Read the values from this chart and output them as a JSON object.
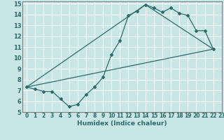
{
  "xlabel": "Humidex (Indice chaleur)",
  "xlim": [
    -0.5,
    23
  ],
  "ylim": [
    5,
    15.2
  ],
  "xticks": [
    0,
    1,
    2,
    3,
    4,
    5,
    6,
    7,
    8,
    9,
    10,
    11,
    12,
    13,
    14,
    15,
    16,
    17,
    18,
    19,
    20,
    21,
    22,
    23
  ],
  "yticks": [
    5,
    6,
    7,
    8,
    9,
    10,
    11,
    12,
    13,
    14,
    15
  ],
  "bg_color": "#c8e6e6",
  "grid_color": "#ffffff",
  "line_color": "#2d6b6b",
  "line1_x": [
    0,
    1,
    2,
    3,
    4,
    5,
    6,
    7,
    8,
    9,
    10,
    11,
    12,
    13,
    14,
    15,
    16,
    17,
    18,
    19,
    20,
    21,
    22
  ],
  "line1_y": [
    7.3,
    7.1,
    6.9,
    6.9,
    6.2,
    5.5,
    5.7,
    6.6,
    7.3,
    8.2,
    10.3,
    11.6,
    13.9,
    14.3,
    14.9,
    14.6,
    14.2,
    14.6,
    14.1,
    13.9,
    12.5,
    12.5,
    10.8
  ],
  "line2_x": [
    0,
    22
  ],
  "line2_y": [
    7.3,
    10.8
  ],
  "line3_x": [
    0,
    14,
    22
  ],
  "line3_y": [
    7.3,
    14.9,
    10.8
  ],
  "xlabel_fontsize": 6.5,
  "tick_fontsize": 5.5,
  "ytick_fontsize": 6
}
